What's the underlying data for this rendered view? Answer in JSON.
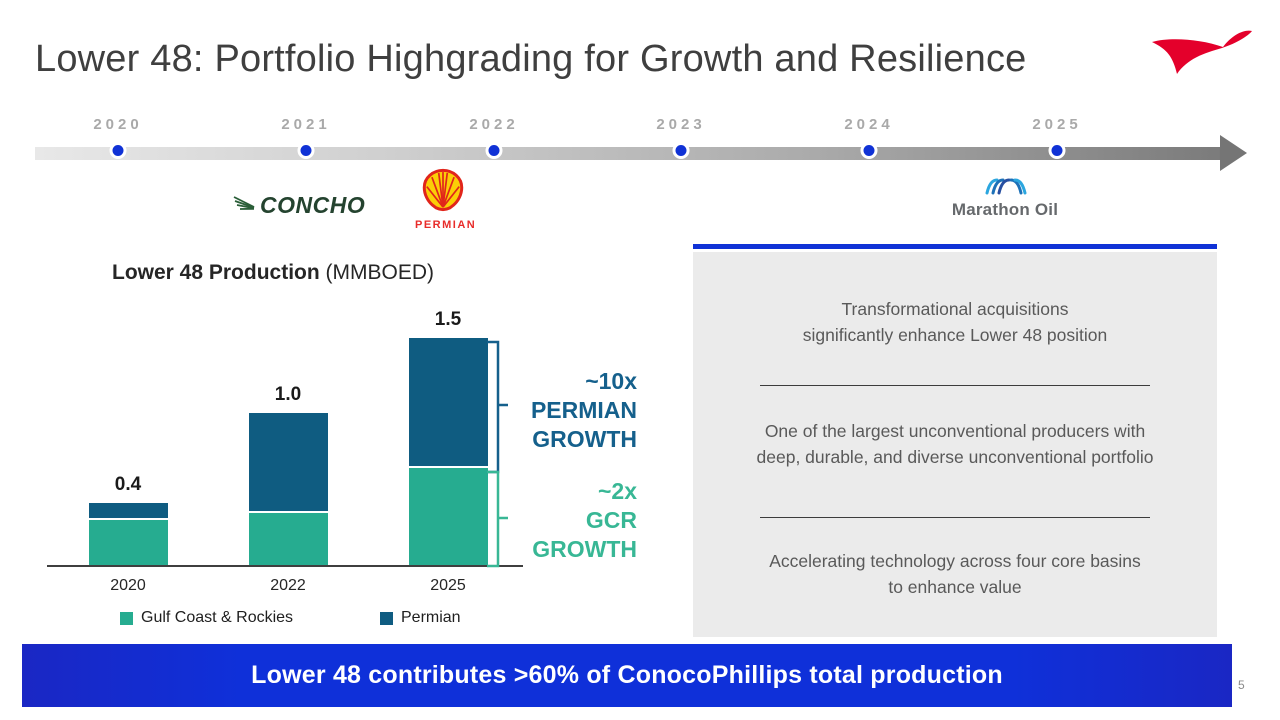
{
  "slide": {
    "title": "Lower 48: Portfolio Highgrading for Growth and Resilience",
    "banner": "Lower 48 contributes >60% of ConocoPhillips total production",
    "page_number": "5",
    "accent_blue": "#1032d6"
  },
  "timeline": {
    "years": [
      "2020",
      "2021",
      "2022",
      "2023",
      "2024",
      "2025"
    ],
    "logos": {
      "concho": {
        "label": "CONCHO"
      },
      "shell_permian": {
        "label": "PERMIAN"
      },
      "marathon": {
        "label": "Marathon Oil"
      }
    }
  },
  "chart_data": {
    "type": "bar",
    "stacked": true,
    "title": "Lower 48 Production (MMBOED)",
    "title_bold": "Lower 48 Production",
    "title_suffix": "(MMBOED)",
    "categories": [
      "2020",
      "2022",
      "2025"
    ],
    "series": [
      {
        "name": "Gulf Coast & Rockies",
        "color": "#26ac90",
        "values": [
          0.3,
          0.35,
          0.65
        ]
      },
      {
        "name": "Permian",
        "color": "#0f5c81",
        "values": [
          0.1,
          0.65,
          0.85
        ]
      }
    ],
    "totals_labels": [
      "0.4",
      "1.0",
      "1.5"
    ],
    "ylim": [
      0,
      1.6
    ],
    "grid": false,
    "legend_position": "bottom",
    "annotations": [
      {
        "lines": [
          "~10x",
          "PERMIAN",
          "GROWTH"
        ],
        "color": "#15608c"
      },
      {
        "lines": [
          "~2x",
          "GCR",
          "GROWTH"
        ],
        "color": "#38b795"
      }
    ]
  },
  "panel": {
    "items": [
      {
        "lines": [
          "Transformational acquisitions",
          "significantly enhance Lower 48 position"
        ]
      },
      {
        "lines": [
          "One of the largest unconventional producers with",
          "deep, durable, and diverse unconventional portfolio"
        ]
      },
      {
        "lines": [
          "Accelerating technology across four core basins",
          "to enhance value"
        ]
      }
    ]
  }
}
